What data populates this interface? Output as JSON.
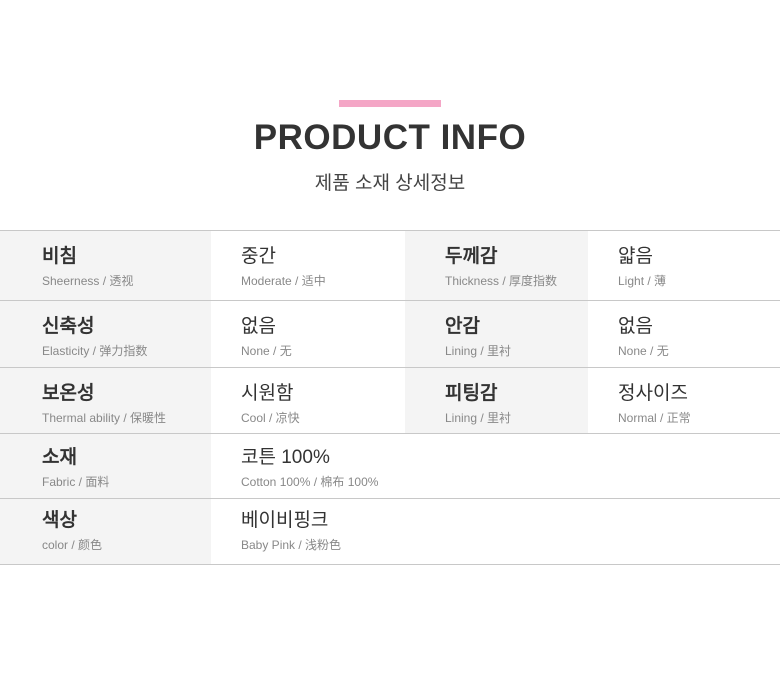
{
  "header": {
    "title": "PRODUCT INFO",
    "subtitle": "제품 소재 상세정보",
    "accent_color": "#f4a6c6"
  },
  "rows4": [
    {
      "l1": "비침",
      "l1en": "Sheerness / 透视",
      "v1": "중간",
      "v1en": "Moderate / 适中",
      "l2": "두께감",
      "l2en": "Thickness / 厚度指数",
      "v2": "얇음",
      "v2en": "Light / 薄"
    },
    {
      "l1": "신축성",
      "l1en": "Elasticity / 弹力指数",
      "v1": "없음",
      "v1en": "None / 无",
      "l2": "안감",
      "l2en": "Lining / 里衬",
      "v2": "없음",
      "v2en": "None / 无"
    },
    {
      "l1": "보온성",
      "l1en": "Thermal ability / 保暖性",
      "v1": "시원함",
      "v1en": "Cool / 凉快",
      "l2": "피팅감",
      "l2en": "Lining / 里衬",
      "v2": "정사이즈",
      "v2en": "Normal / 正常"
    }
  ],
  "rows2": [
    {
      "l": "소재",
      "len": "Fabric / 面料",
      "v": "코튼 100%",
      "ven": "Cotton 100% / 棉布 100%"
    },
    {
      "l": "색상",
      "len": "color / 颜色",
      "v": "베이비핑크",
      "ven": "Baby Pink / 浅粉色"
    }
  ]
}
